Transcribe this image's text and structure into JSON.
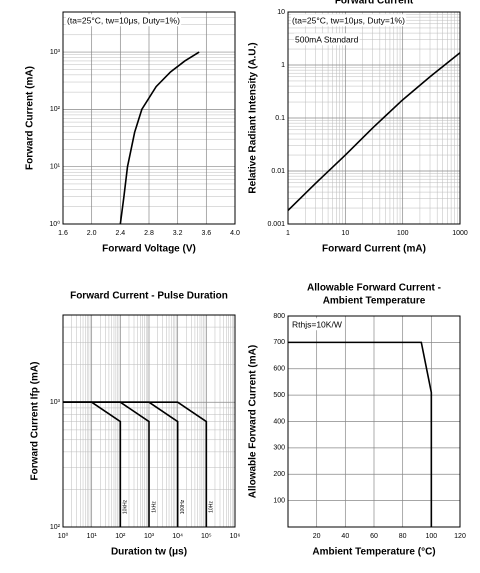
{
  "chart_data": [
    {
      "type": "line",
      "xlabel": "Forward Voltage (V)",
      "ylabel": "Forward Current (mA)",
      "annotations": [
        "(ta=25°C, tw=10μs, Duty=1%)"
      ],
      "xlim": [
        1.6,
        4.0
      ],
      "xticks": [
        1.6,
        {
          "value": 2,
          "label": "2.0"
        },
        2.4,
        2.8,
        3.2,
        3.6,
        {
          "value": 4,
          "label": "4.0"
        }
      ],
      "ylim": [
        1,
        5000
      ],
      "ylog": true,
      "yticks": [
        {
          "value": 1,
          "label": "10⁰"
        },
        {
          "value": 10,
          "label": "10¹"
        },
        {
          "value": 100,
          "label": "10²"
        },
        {
          "value": 1000,
          "label": "10³"
        }
      ],
      "grid": true,
      "minor_grid": true,
      "series": [
        {
          "color": "#000000",
          "x": [
            2.4,
            2.45,
            2.5,
            2.6,
            2.7,
            2.9,
            3.1,
            3.3,
            3.5
          ],
          "values": [
            1,
            3,
            10,
            40,
            100,
            250,
            450,
            700,
            1000
          ]
        }
      ]
    },
    {
      "type": "line",
      "title": "Forward Current",
      "xlabel": "Forward Current (mA)",
      "ylabel": "Relative Radiant Intensity (A.U.)",
      "annotations": [
        "(ta=25°C, tw=10μs, Duty=1%)",
        "500mA Standard"
      ],
      "xlim": [
        1,
        1000
      ],
      "xlog": true,
      "xticks": [
        1,
        10,
        100,
        1000
      ],
      "ylim": [
        0.001,
        10
      ],
      "ylog": true,
      "yticks": [
        0.001,
        0.01,
        0.1,
        1,
        10
      ],
      "grid": true,
      "minor_grid": true,
      "series": [
        {
          "color": "#000000",
          "x": [
            1,
            3,
            10,
            30,
            100,
            300,
            1000
          ],
          "values": [
            0.0018,
            0.0058,
            0.02,
            0.065,
            0.22,
            0.6,
            1.7
          ]
        }
      ]
    },
    {
      "type": "line",
      "title": "Forward Current - Pulse Duration",
      "xlabel": "Duration tw (μs)",
      "ylabel": "Forward Current Ifp (mA)",
      "xlim": [
        1,
        1000000
      ],
      "xlog": true,
      "xticks": [
        {
          "value": 1,
          "label": "10⁰"
        },
        {
          "value": 10,
          "label": "10¹"
        },
        {
          "value": 100,
          "label": "10²"
        },
        {
          "value": 1000,
          "label": "10³"
        },
        {
          "value": 10000,
          "label": "10⁴"
        },
        {
          "value": 100000,
          "label": "10⁵"
        },
        {
          "value": 1000000,
          "label": "10⁶"
        }
      ],
      "ylim": [
        100,
        5000
      ],
      "ylog": true,
      "yticks": [
        {
          "value": 100,
          "label": "10²"
        },
        {
          "value": 1000,
          "label": "10³"
        }
      ],
      "grid": true,
      "minor_grid": true,
      "series": [
        {
          "name": "10kHz",
          "color": "#000000",
          "x": [
            1,
            10,
            100,
            100
          ],
          "values": [
            1000,
            1000,
            700,
            100
          ]
        },
        {
          "name": "1kHz",
          "color": "#000000",
          "x": [
            1,
            100,
            1000,
            1000
          ],
          "values": [
            1000,
            1000,
            700,
            100
          ]
        },
        {
          "name": "100Hz",
          "color": "#000000",
          "x": [
            1,
            1000,
            10000,
            10000
          ],
          "values": [
            1000,
            1000,
            700,
            100
          ]
        },
        {
          "name": "10Hz",
          "color": "#000000",
          "x": [
            1,
            10000,
            100000,
            100000
          ],
          "values": [
            1000,
            1000,
            700,
            100
          ]
        }
      ]
    },
    {
      "type": "line",
      "title": [
        "Allowable Forward Current -",
        "Ambient Temperature"
      ],
      "xlabel": "Ambient Temperature (°C)",
      "ylabel": "Allowable Forward Current (mA)",
      "annotations": [
        "Rthjs=10K/W"
      ],
      "xlim": [
        0,
        120
      ],
      "xticks": [
        20,
        40,
        60,
        80,
        100,
        120
      ],
      "ylim": [
        0,
        800
      ],
      "yticks": [
        100,
        200,
        300,
        400,
        500,
        600,
        700,
        800
      ],
      "grid": true,
      "minor_grid": false,
      "series": [
        {
          "color": "#000000",
          "x": [
            0,
            93,
            100,
            100
          ],
          "values": [
            700,
            700,
            510,
            0
          ]
        }
      ]
    }
  ]
}
